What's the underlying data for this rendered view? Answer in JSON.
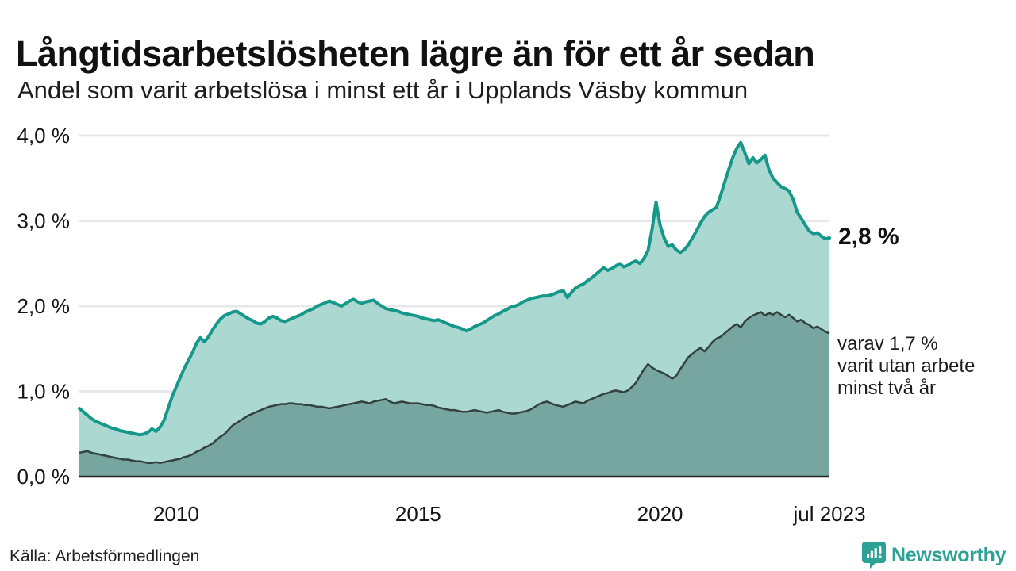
{
  "footer": {
    "brand": "Newsworthy"
  },
  "colors": {
    "series1_line": "#15988a",
    "series1_fill": "#a6d6cf",
    "series2_line": "#32423f",
    "series2_fill": "#70a19b",
    "grid": "#e8e8ec",
    "baseline": "#242424",
    "axis_text": "#161616",
    "brand_teal": "#2ca295"
  },
  "chart_data": {
    "type": "area",
    "title": "Långtidsarbetslösheten lägre än för ett år sedan",
    "subtitle": "Andel som varit arbetslösa i minst ett år i Upplands Väsby kommun",
    "source": "Källa: Arbetsförmedlingen",
    "unit": "%",
    "frequency": "monthly",
    "x_start": "2008-01",
    "x_end": "2023-07",
    "ylim": [
      0,
      4
    ],
    "grid": true,
    "legend_position": "none",
    "y_ticks": [
      {
        "value": 0,
        "label": "0,0 %"
      },
      {
        "value": 1,
        "label": "1,0 %"
      },
      {
        "value": 2,
        "label": "2,0 %"
      },
      {
        "value": 3,
        "label": "3,0 %"
      },
      {
        "value": 4,
        "label": "4,0 %"
      }
    ],
    "x_ticks": [
      {
        "index": 24,
        "label": "2010"
      },
      {
        "index": 84,
        "label": "2015"
      },
      {
        "index": 144,
        "label": "2020"
      },
      {
        "index": 186,
        "label": "jul 2023"
      }
    ],
    "annotations": {
      "series1_end_label": "2,8 %",
      "series2_end_lines": [
        "varav 1,7 %",
        "varit utan arbete",
        "minst två år"
      ]
    },
    "series": [
      {
        "name": "Andel som varit arbetslösa minst ett år",
        "values": [
          0.8,
          0.76,
          0.72,
          0.68,
          0.65,
          0.63,
          0.61,
          0.59,
          0.57,
          0.56,
          0.54,
          0.53,
          0.52,
          0.51,
          0.5,
          0.49,
          0.5,
          0.52,
          0.56,
          0.53,
          0.58,
          0.66,
          0.8,
          0.94,
          1.05,
          1.16,
          1.27,
          1.36,
          1.45,
          1.56,
          1.63,
          1.58,
          1.64,
          1.72,
          1.79,
          1.85,
          1.89,
          1.91,
          1.93,
          1.94,
          1.91,
          1.88,
          1.85,
          1.83,
          1.8,
          1.79,
          1.82,
          1.86,
          1.88,
          1.86,
          1.83,
          1.82,
          1.84,
          1.86,
          1.88,
          1.9,
          1.93,
          1.95,
          1.97,
          2.0,
          2.02,
          2.04,
          2.06,
          2.04,
          2.02,
          2.0,
          2.03,
          2.06,
          2.08,
          2.05,
          2.03,
          2.05,
          2.06,
          2.07,
          2.03,
          2.0,
          1.97,
          1.96,
          1.95,
          1.94,
          1.92,
          1.91,
          1.9,
          1.89,
          1.88,
          1.86,
          1.85,
          1.84,
          1.83,
          1.84,
          1.82,
          1.8,
          1.78,
          1.76,
          1.75,
          1.73,
          1.71,
          1.73,
          1.76,
          1.78,
          1.8,
          1.83,
          1.86,
          1.89,
          1.91,
          1.94,
          1.96,
          1.99,
          2.0,
          2.02,
          2.05,
          2.07,
          2.09,
          2.1,
          2.11,
          2.12,
          2.12,
          2.13,
          2.15,
          2.17,
          2.18,
          2.1,
          2.16,
          2.21,
          2.24,
          2.26,
          2.3,
          2.33,
          2.37,
          2.41,
          2.45,
          2.42,
          2.44,
          2.47,
          2.5,
          2.46,
          2.48,
          2.51,
          2.53,
          2.5,
          2.56,
          2.65,
          2.9,
          3.22,
          2.95,
          2.8,
          2.7,
          2.72,
          2.66,
          2.63,
          2.66,
          2.72,
          2.8,
          2.88,
          2.97,
          3.05,
          3.1,
          3.13,
          3.16,
          3.3,
          3.45,
          3.6,
          3.74,
          3.85,
          3.92,
          3.8,
          3.67,
          3.74,
          3.68,
          3.72,
          3.77,
          3.6,
          3.5,
          3.45,
          3.4,
          3.38,
          3.35,
          3.25,
          3.1,
          3.03,
          2.95,
          2.88,
          2.85,
          2.86,
          2.82,
          2.79,
          2.8
        ]
      },
      {
        "name": "varav arbetslösa minst två år",
        "values": [
          0.28,
          0.29,
          0.3,
          0.28,
          0.27,
          0.26,
          0.25,
          0.24,
          0.23,
          0.22,
          0.21,
          0.2,
          0.2,
          0.19,
          0.18,
          0.18,
          0.17,
          0.16,
          0.16,
          0.17,
          0.16,
          0.17,
          0.18,
          0.19,
          0.2,
          0.21,
          0.23,
          0.24,
          0.26,
          0.29,
          0.31,
          0.34,
          0.36,
          0.39,
          0.43,
          0.47,
          0.5,
          0.55,
          0.6,
          0.63,
          0.66,
          0.69,
          0.72,
          0.74,
          0.76,
          0.78,
          0.8,
          0.82,
          0.83,
          0.84,
          0.85,
          0.85,
          0.86,
          0.86,
          0.85,
          0.85,
          0.84,
          0.84,
          0.83,
          0.82,
          0.82,
          0.81,
          0.8,
          0.81,
          0.82,
          0.83,
          0.84,
          0.85,
          0.86,
          0.87,
          0.88,
          0.87,
          0.86,
          0.88,
          0.89,
          0.9,
          0.91,
          0.88,
          0.86,
          0.87,
          0.88,
          0.87,
          0.86,
          0.86,
          0.86,
          0.85,
          0.84,
          0.84,
          0.83,
          0.81,
          0.8,
          0.79,
          0.78,
          0.78,
          0.77,
          0.76,
          0.76,
          0.77,
          0.78,
          0.77,
          0.76,
          0.75,
          0.76,
          0.77,
          0.78,
          0.76,
          0.75,
          0.74,
          0.74,
          0.75,
          0.76,
          0.77,
          0.79,
          0.82,
          0.85,
          0.87,
          0.88,
          0.86,
          0.84,
          0.83,
          0.82,
          0.84,
          0.86,
          0.88,
          0.87,
          0.86,
          0.89,
          0.91,
          0.93,
          0.95,
          0.97,
          0.98,
          1.0,
          1.01,
          1.0,
          0.99,
          1.01,
          1.05,
          1.1,
          1.18,
          1.26,
          1.32,
          1.28,
          1.25,
          1.23,
          1.21,
          1.18,
          1.15,
          1.18,
          1.26,
          1.33,
          1.4,
          1.44,
          1.48,
          1.51,
          1.47,
          1.52,
          1.58,
          1.62,
          1.64,
          1.68,
          1.72,
          1.76,
          1.79,
          1.75,
          1.82,
          1.86,
          1.89,
          1.91,
          1.93,
          1.89,
          1.92,
          1.9,
          1.93,
          1.9,
          1.87,
          1.9,
          1.86,
          1.82,
          1.84,
          1.8,
          1.78,
          1.74,
          1.76,
          1.73,
          1.7,
          1.68
        ]
      }
    ]
  }
}
